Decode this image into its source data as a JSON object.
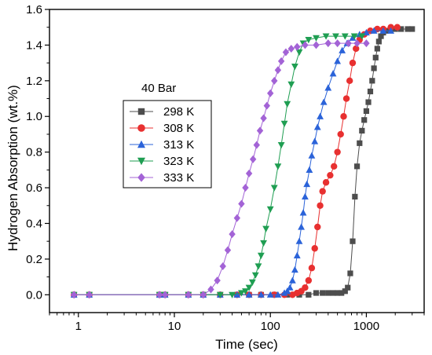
{
  "chart_data": {
    "type": "scatter",
    "xlabel": "Time (sec)",
    "ylabel": "Hydrogen Absorption (wt.%)",
    "x_scale": "log",
    "xlim": [
      0.5,
      4000
    ],
    "ylim": [
      -0.1,
      1.6
    ],
    "x_ticks": [
      {
        "value": 1,
        "label": "1"
      },
      {
        "value": 10,
        "label": "10"
      },
      {
        "value": 100,
        "label": "100"
      },
      {
        "value": 1000,
        "label": "1000"
      }
    ],
    "y_ticks": [
      {
        "value": 0,
        "label": "0.0"
      },
      {
        "value": 0.2,
        "label": "0.2"
      },
      {
        "value": 0.4,
        "label": "0.4"
      },
      {
        "value": 0.6,
        "label": "0.6"
      },
      {
        "value": 0.8,
        "label": "0.8"
      },
      {
        "value": 1.0,
        "label": "1.0"
      },
      {
        "value": 1.2,
        "label": "1.2"
      },
      {
        "value": 1.4,
        "label": "1.4"
      },
      {
        "value": 1.6,
        "label": "1.6"
      }
    ],
    "grid": false,
    "legend": {
      "title": "40 Bar",
      "placement": "center-left"
    },
    "series": [
      {
        "name": "298 K",
        "color": "#4d4d4d",
        "marker": "square",
        "points": [
          [
            0.9,
            0.0
          ],
          [
            1.3,
            0.0
          ],
          [
            7,
            0.0
          ],
          [
            8,
            0.0
          ],
          [
            14,
            0.0
          ],
          [
            20,
            0.0
          ],
          [
            30,
            0.0
          ],
          [
            45,
            0.0
          ],
          [
            60,
            0.0
          ],
          [
            80,
            0.0
          ],
          [
            110,
            0.0
          ],
          [
            150,
            0.0
          ],
          [
            200,
            0.0
          ],
          [
            250,
            0.0
          ],
          [
            300,
            0.01
          ],
          [
            350,
            0.01
          ],
          [
            400,
            0.01
          ],
          [
            450,
            0.01
          ],
          [
            500,
            0.01
          ],
          [
            550,
            0.01
          ],
          [
            600,
            0.02
          ],
          [
            640,
            0.04
          ],
          [
            680,
            0.12
          ],
          [
            720,
            0.3
          ],
          [
            760,
            0.55
          ],
          [
            800,
            0.72
          ],
          [
            850,
            0.85
          ],
          [
            900,
            0.92
          ],
          [
            950,
            0.98
          ],
          [
            1000,
            1.03
          ],
          [
            1050,
            1.08
          ],
          [
            1100,
            1.14
          ],
          [
            1150,
            1.2
          ],
          [
            1200,
            1.27
          ],
          [
            1250,
            1.33
          ],
          [
            1300,
            1.38
          ],
          [
            1350,
            1.42
          ],
          [
            1420,
            1.45
          ],
          [
            1500,
            1.47
          ],
          [
            1600,
            1.48
          ],
          [
            1800,
            1.49
          ],
          [
            2000,
            1.49
          ],
          [
            2300,
            1.49
          ],
          [
            2700,
            1.49
          ],
          [
            3000,
            1.49
          ]
        ]
      },
      {
        "name": "308 K",
        "color": "#e83030",
        "marker": "circle",
        "points": [
          [
            0.9,
            0.0
          ],
          [
            1.3,
            0.0
          ],
          [
            7,
            0.0
          ],
          [
            8,
            0.0
          ],
          [
            14,
            0.0
          ],
          [
            20,
            0.0
          ],
          [
            30,
            0.0
          ],
          [
            45,
            0.0
          ],
          [
            60,
            0.0
          ],
          [
            80,
            0.0
          ],
          [
            110,
            0.0
          ],
          [
            140,
            0.0
          ],
          [
            170,
            0.0
          ],
          [
            190,
            0.01
          ],
          [
            210,
            0.02
          ],
          [
            230,
            0.04
          ],
          [
            250,
            0.08
          ],
          [
            270,
            0.15
          ],
          [
            290,
            0.26
          ],
          [
            310,
            0.38
          ],
          [
            330,
            0.5
          ],
          [
            350,
            0.58
          ],
          [
            380,
            0.63
          ],
          [
            420,
            0.67
          ],
          [
            460,
            0.72
          ],
          [
            500,
            0.8
          ],
          [
            540,
            0.9
          ],
          [
            580,
            1.0
          ],
          [
            620,
            1.1
          ],
          [
            670,
            1.2
          ],
          [
            720,
            1.3
          ],
          [
            780,
            1.38
          ],
          [
            850,
            1.43
          ],
          [
            950,
            1.46
          ],
          [
            1100,
            1.48
          ],
          [
            1300,
            1.49
          ],
          [
            1500,
            1.49
          ],
          [
            1800,
            1.5
          ],
          [
            2100,
            1.5
          ]
        ]
      },
      {
        "name": "313 K",
        "color": "#2b63d9",
        "marker": "triangle-up",
        "points": [
          [
            0.9,
            0.0
          ],
          [
            1.3,
            0.0
          ],
          [
            7,
            0.0
          ],
          [
            8,
            0.0
          ],
          [
            14,
            0.0
          ],
          [
            20,
            0.0
          ],
          [
            30,
            0.0
          ],
          [
            45,
            0.0
          ],
          [
            60,
            0.0
          ],
          [
            80,
            0.0
          ],
          [
            100,
            0.0
          ],
          [
            120,
            0.0
          ],
          [
            140,
            0.01
          ],
          [
            150,
            0.02
          ],
          [
            160,
            0.04
          ],
          [
            170,
            0.08
          ],
          [
            180,
            0.14
          ],
          [
            190,
            0.22
          ],
          [
            200,
            0.3
          ],
          [
            210,
            0.38
          ],
          [
            220,
            0.46
          ],
          [
            230,
            0.55
          ],
          [
            240,
            0.62
          ],
          [
            255,
            0.7
          ],
          [
            270,
            0.78
          ],
          [
            290,
            0.86
          ],
          [
            310,
            0.94
          ],
          [
            330,
            1.0
          ],
          [
            360,
            1.08
          ],
          [
            400,
            1.16
          ],
          [
            450,
            1.24
          ],
          [
            500,
            1.31
          ],
          [
            560,
            1.37
          ],
          [
            630,
            1.41
          ],
          [
            720,
            1.44
          ],
          [
            850,
            1.46
          ],
          [
            1000,
            1.47
          ],
          [
            1200,
            1.48
          ],
          [
            1500,
            1.48
          ],
          [
            1800,
            1.48
          ]
        ]
      },
      {
        "name": "323 K",
        "color": "#1f9e52",
        "marker": "triangle-down",
        "points": [
          [
            0.9,
            0.0
          ],
          [
            1.3,
            0.0
          ],
          [
            7,
            0.0
          ],
          [
            8,
            0.0
          ],
          [
            14,
            0.0
          ],
          [
            20,
            0.0
          ],
          [
            30,
            0.0
          ],
          [
            40,
            0.0
          ],
          [
            50,
            0.01
          ],
          [
            55,
            0.02
          ],
          [
            60,
            0.04
          ],
          [
            65,
            0.07
          ],
          [
            70,
            0.11
          ],
          [
            75,
            0.16
          ],
          [
            80,
            0.22
          ],
          [
            85,
            0.29
          ],
          [
            90,
            0.37
          ],
          [
            100,
            0.48
          ],
          [
            110,
            0.6
          ],
          [
            120,
            0.72
          ],
          [
            130,
            0.84
          ],
          [
            140,
            0.96
          ],
          [
            150,
            1.07
          ],
          [
            165,
            1.18
          ],
          [
            180,
            1.28
          ],
          [
            200,
            1.36
          ],
          [
            220,
            1.41
          ],
          [
            250,
            1.43
          ],
          [
            300,
            1.44
          ],
          [
            380,
            1.45
          ],
          [
            480,
            1.45
          ],
          [
            600,
            1.45
          ],
          [
            750,
            1.45
          ],
          [
            900,
            1.45
          ]
        ]
      },
      {
        "name": "333 K",
        "color": "#a363d6",
        "marker": "diamond",
        "points": [
          [
            0.9,
            0.0
          ],
          [
            1.3,
            0.0
          ],
          [
            7,
            0.0
          ],
          [
            8,
            0.0
          ],
          [
            14,
            0.0
          ],
          [
            20,
            0.0
          ],
          [
            24,
            0.03
          ],
          [
            28,
            0.08
          ],
          [
            32,
            0.16
          ],
          [
            36,
            0.25
          ],
          [
            40,
            0.34
          ],
          [
            45,
            0.43
          ],
          [
            50,
            0.51
          ],
          [
            55,
            0.6
          ],
          [
            60,
            0.68
          ],
          [
            66,
            0.76
          ],
          [
            72,
            0.84
          ],
          [
            78,
            0.92
          ],
          [
            85,
            0.99
          ],
          [
            92,
            1.06
          ],
          [
            100,
            1.13
          ],
          [
            110,
            1.2
          ],
          [
            120,
            1.26
          ],
          [
            130,
            1.31
          ],
          [
            145,
            1.36
          ],
          [
            165,
            1.38
          ],
          [
            190,
            1.39
          ],
          [
            230,
            1.4
          ],
          [
            300,
            1.4
          ],
          [
            400,
            1.41
          ],
          [
            500,
            1.41
          ],
          [
            650,
            1.41
          ],
          [
            800,
            1.41
          ],
          [
            1000,
            1.41
          ]
        ]
      }
    ]
  }
}
